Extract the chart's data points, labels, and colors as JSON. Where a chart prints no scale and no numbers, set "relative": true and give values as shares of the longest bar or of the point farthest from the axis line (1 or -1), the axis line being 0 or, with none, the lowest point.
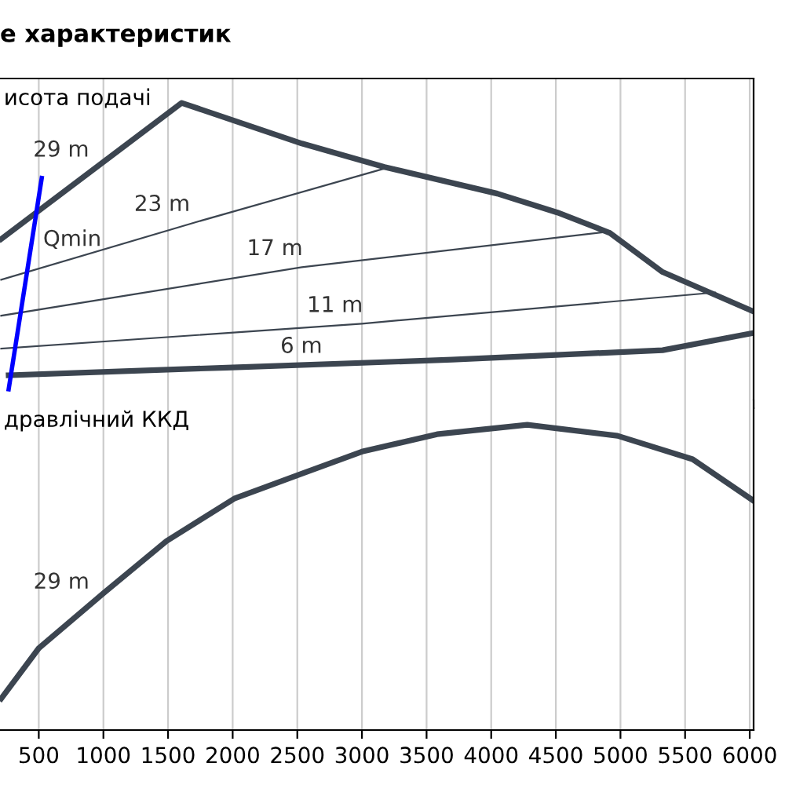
{
  "chart_data": [
    {
      "type": "line",
      "title": "е характеристик",
      "ylabel": "исота подачі",
      "relative": true,
      "xlim": [
        200,
        6030
      ],
      "tick_labels": false,
      "grid": "x",
      "series": [
        {
          "color": "#3c4550",
          "x": [
            209,
            1605,
            2535,
            3174,
            4047,
            4512,
            4919,
            5326,
            6023
          ],
          "values": [
            0.554,
            1,
            0.867,
            0.79,
            0.703,
            0.641,
            0.574,
            0.446,
            0.318
          ]
        },
        {
          "color": "#3c4550",
          "x": [
            267,
            1953,
            3698,
            5326,
            6023
          ],
          "values": [
            0.108,
            0.133,
            0.159,
            0.19,
            0.246
          ]
        },
        {
          "color": "#3c4550",
          "x": [
            209,
            1721,
            3174
          ],
          "values": [
            0.421,
            0.61,
            0.785
          ]
        },
        {
          "color": "#3c4550",
          "x": [
            209,
            2535,
            4919
          ],
          "values": [
            0.303,
            0.462,
            0.579
          ]
        },
        {
          "color": "#3c4550",
          "x": [
            209,
            3000,
            5733
          ],
          "values": [
            0.195,
            0.277,
            0.379
          ]
        },
        {
          "color": "#0000ff",
          "x": [
            267,
            523
          ],
          "values": [
            0.062,
            0.754
          ]
        }
      ],
      "annotations": [
        {
          "text": "29 m",
          "x": 940,
          "y": 0.788
        },
        {
          "text": "Qmin",
          "x": 466,
          "y": 0.6
        },
        {
          "text": "23 m",
          "x": 1721,
          "y": 0.61
        },
        {
          "text": "17 m",
          "x": 2593,
          "y": 0.465
        },
        {
          "text": "11 m",
          "x": 3058,
          "y": 0.279
        },
        {
          "text": "6 m",
          "x": 2744,
          "y": 0.145
        }
      ]
    },
    {
      "type": "line",
      "ylabel": "дравлічний ККД",
      "relative": true,
      "xlim": [
        200,
        6030
      ],
      "tick_labels": "x",
      "grid": "x",
      "xticks": [
        500,
        1000,
        1500,
        2000,
        2500,
        3000,
        3500,
        4000,
        4500,
        5000,
        5500,
        6000
      ],
      "series": [
        {
          "color": "#3c4550",
          "x": [
            209,
            500,
            1000,
            1488,
            2012,
            2535,
            3000,
            3581,
            4279,
            4977,
            5558,
            6023
          ],
          "values": [
            0.103,
            0.268,
            0.448,
            0.619,
            0.758,
            0.84,
            0.912,
            0.969,
            1,
            0.964,
            0.887,
            0.753
          ]
        }
      ],
      "annotations": [
        {
          "text": "29 m",
          "x": 942,
          "y": 0.427
        }
      ]
    }
  ]
}
